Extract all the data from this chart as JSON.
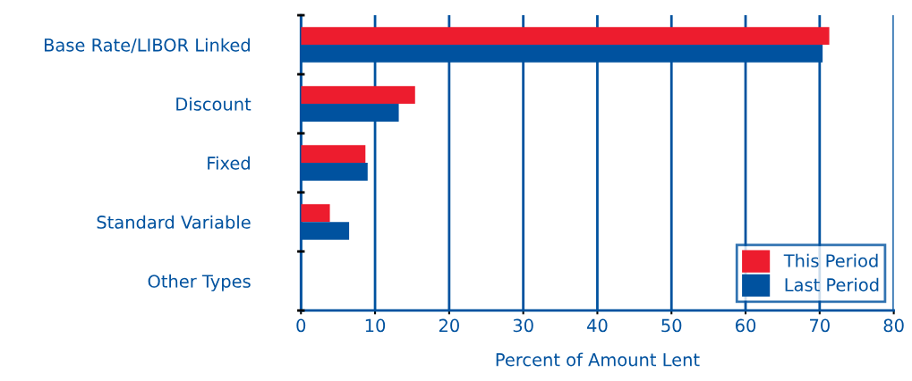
{
  "chart_data": {
    "type": "bar",
    "orientation": "horizontal",
    "xlabel": "Percent of Amount Lent",
    "categories": [
      "Base Rate/LIBOR Linked",
      "Discount",
      "Fixed",
      "Standard Variable",
      "Other Types"
    ],
    "series": [
      {
        "name": "This Period",
        "color": "#ed1c2e",
        "values": [
          71.3,
          15.4,
          8.7,
          3.9,
          0
        ]
      },
      {
        "name": "Last Period",
        "color": "#00529f",
        "values": [
          70.4,
          13.2,
          9.0,
          6.5,
          0
        ]
      }
    ],
    "xlim": [
      0,
      80
    ],
    "xticks": [
      0,
      10,
      20,
      30,
      40,
      50,
      60,
      70,
      80
    ],
    "grid": "x",
    "legend": "bottom right"
  }
}
